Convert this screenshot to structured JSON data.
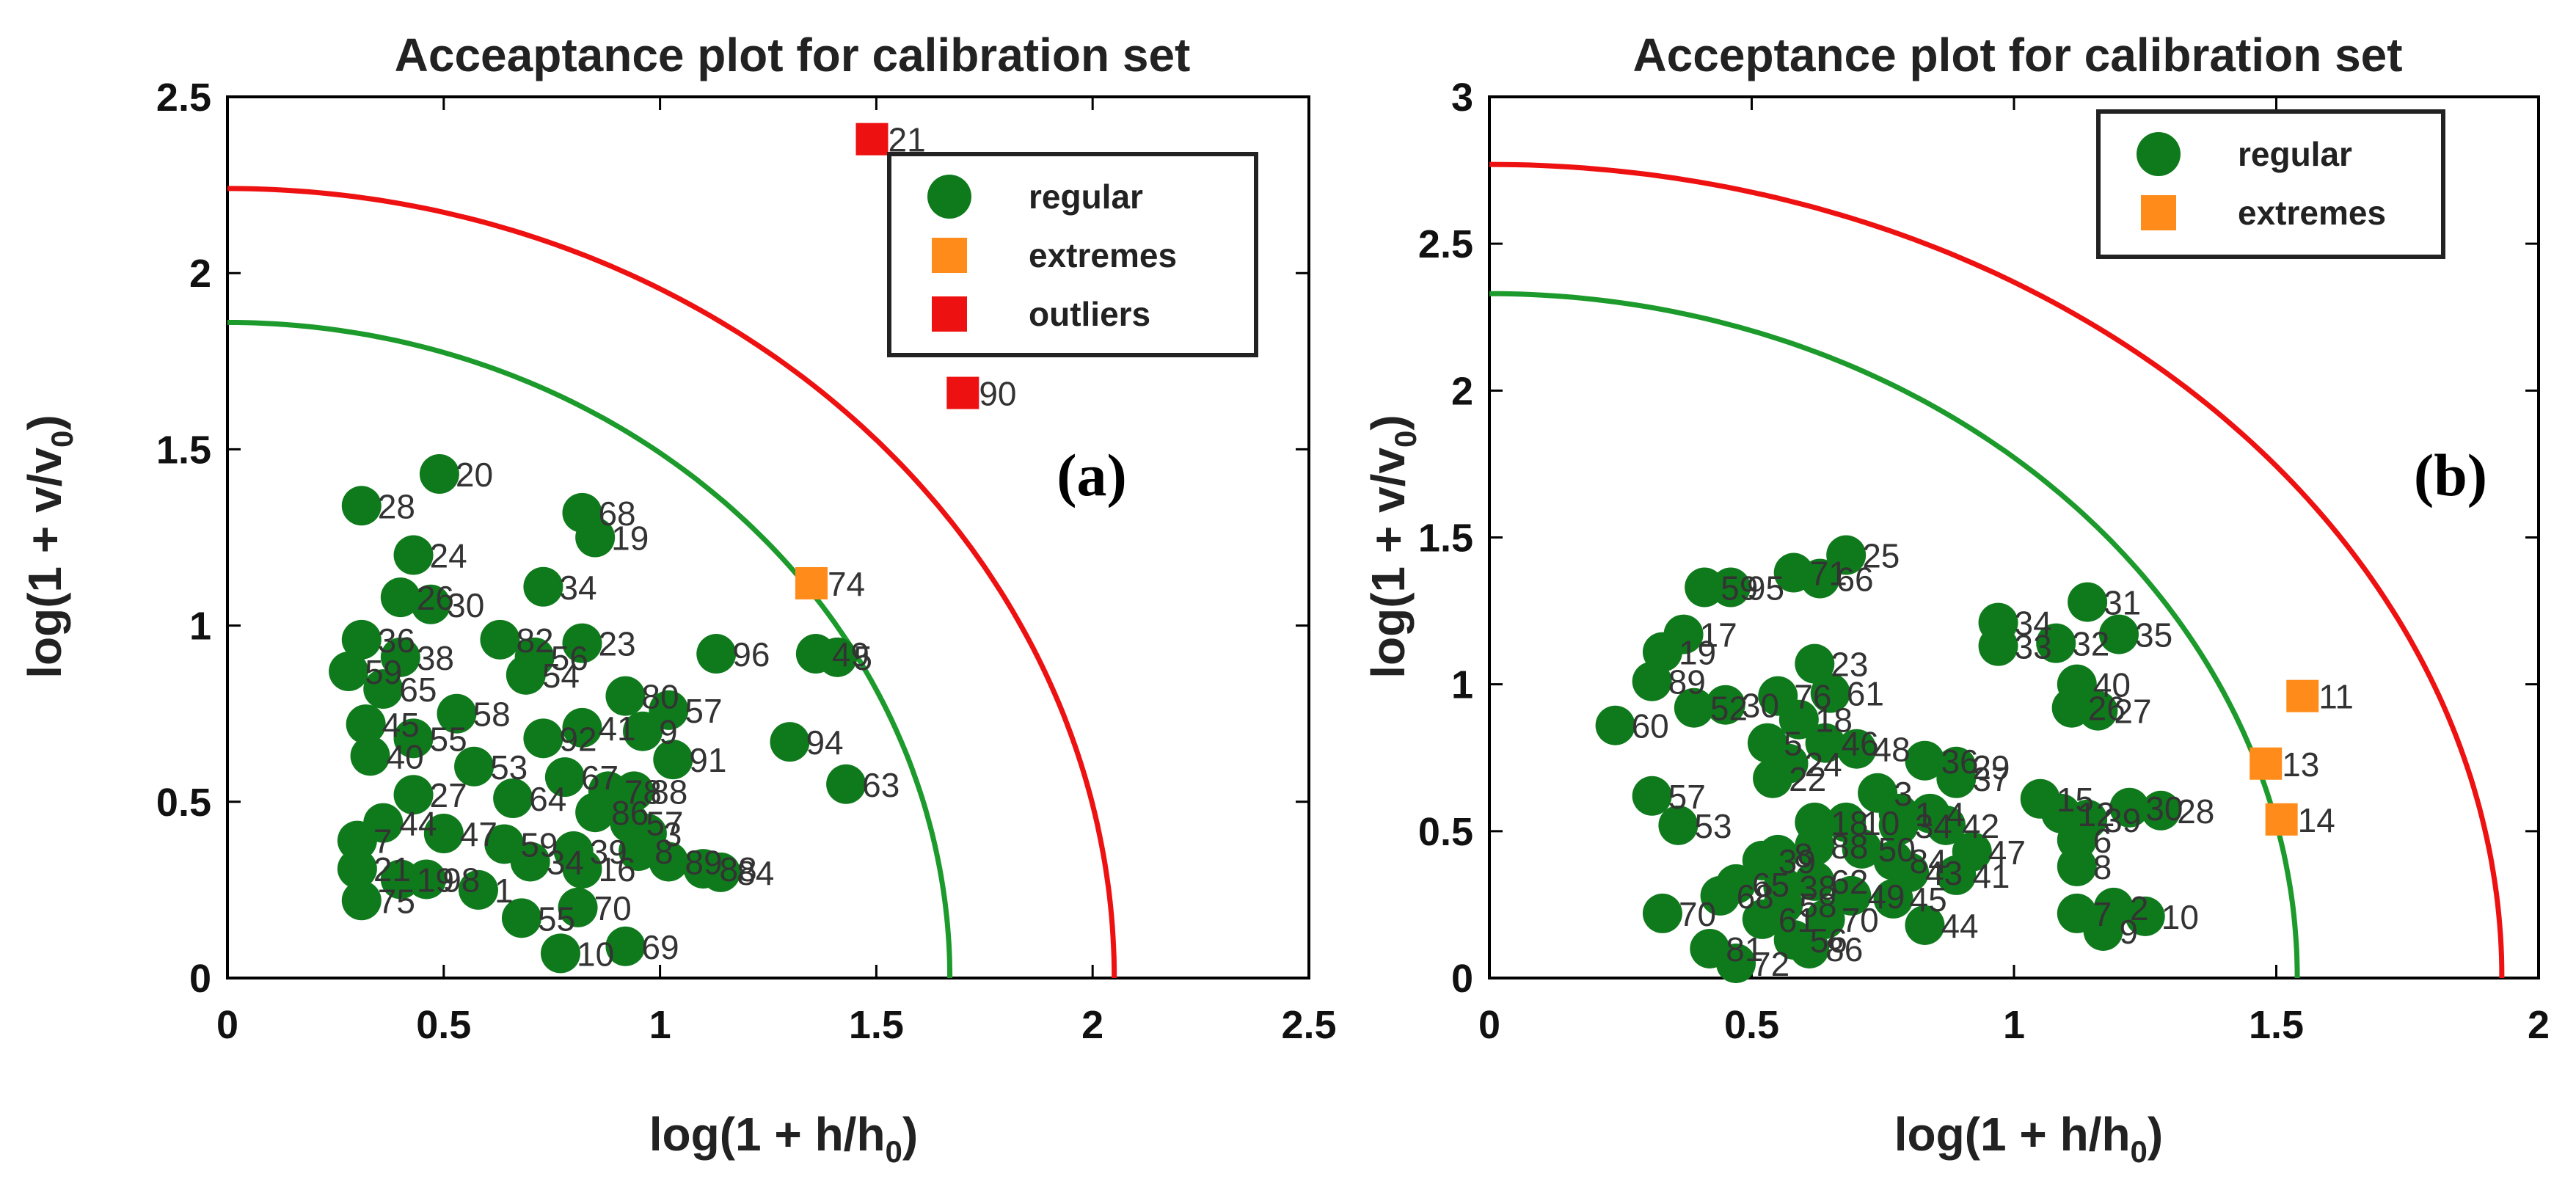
{
  "chart_data": [
    {
      "type": "scatter",
      "panel": "(a)",
      "title": "Acceaptance plot for calibration set",
      "xlabel": "log(1 + h/h",
      "xlabel_sub": "0",
      "xlabel_end": ")",
      "ylabel": "log(1 + v/v",
      "ylabel_sub": "0",
      "ylabel_end": ")",
      "xlim": [
        0,
        2.5
      ],
      "ylim": [
        0,
        2.5
      ],
      "xticks": [
        0,
        0.5,
        1,
        1.5,
        2,
        2.5
      ],
      "xtick_labels": [
        "0",
        "0.5",
        "1",
        "1.5",
        "2",
        "2.5"
      ],
      "yticks": [
        0,
        0.5,
        1,
        1.5,
        2,
        2.5
      ],
      "ytick_labels": [
        "0",
        "0.5",
        "1",
        "1.5",
        "2",
        "2.5"
      ],
      "legend_position": "top-right",
      "legend": [
        {
          "label": "regular",
          "marker": "circle",
          "color": "#0f7a1c"
        },
        {
          "label": "extremes",
          "marker": "square",
          "color": "#ff8c1a"
        },
        {
          "label": "outliers",
          "marker": "square",
          "color": "#ee1111"
        }
      ],
      "curves": [
        {
          "name": "regular limit",
          "color": "#1d9a2c",
          "x_intercept": 1.67,
          "y_intercept": 1.86
        },
        {
          "name": "outlier limit",
          "color": "#ee1111",
          "x_intercept": 2.05,
          "y_intercept": 2.24
        }
      ],
      "series": [
        {
          "name": "regular",
          "points": [
            {
              "x": 0.49,
              "y": 1.43,
              "label": "20"
            },
            {
              "x": 0.31,
              "y": 1.34,
              "label": "28"
            },
            {
              "x": 0.82,
              "y": 1.32,
              "label": "68"
            },
            {
              "x": 0.85,
              "y": 1.25,
              "label": "19"
            },
            {
              "x": 0.43,
              "y": 1.2,
              "label": "24"
            },
            {
              "x": 0.73,
              "y": 1.11,
              "label": "34"
            },
            {
              "x": 0.4,
              "y": 1.08,
              "label": "26"
            },
            {
              "x": 0.47,
              "y": 1.06,
              "label": "30"
            },
            {
              "x": 0.31,
              "y": 0.96,
              "label": "36"
            },
            {
              "x": 0.4,
              "y": 0.91,
              "label": "38"
            },
            {
              "x": 0.63,
              "y": 0.96,
              "label": "82"
            },
            {
              "x": 0.82,
              "y": 0.95,
              "label": "23"
            },
            {
              "x": 0.71,
              "y": 0.91,
              "label": "56"
            },
            {
              "x": 1.13,
              "y": 0.92,
              "label": "96"
            },
            {
              "x": 1.36,
              "y": 0.92,
              "label": "49"
            },
            {
              "x": 1.41,
              "y": 0.91,
              "label": "5"
            },
            {
              "x": 0.28,
              "y": 0.87,
              "label": "59"
            },
            {
              "x": 0.36,
              "y": 0.82,
              "label": "65"
            },
            {
              "x": 0.69,
              "y": 0.86,
              "label": "54"
            },
            {
              "x": 0.92,
              "y": 0.8,
              "label": "80"
            },
            {
              "x": 1.02,
              "y": 0.76,
              "label": "57"
            },
            {
              "x": 0.53,
              "y": 0.75,
              "label": "58"
            },
            {
              "x": 0.32,
              "y": 0.72,
              "label": "45"
            },
            {
              "x": 0.82,
              "y": 0.71,
              "label": "41"
            },
            {
              "x": 0.96,
              "y": 0.7,
              "label": "9"
            },
            {
              "x": 0.73,
              "y": 0.68,
              "label": "92"
            },
            {
              "x": 0.43,
              "y": 0.68,
              "label": "55"
            },
            {
              "x": 1.3,
              "y": 0.67,
              "label": "94"
            },
            {
              "x": 0.33,
              "y": 0.63,
              "label": "40"
            },
            {
              "x": 1.03,
              "y": 0.62,
              "label": "91"
            },
            {
              "x": 0.57,
              "y": 0.6,
              "label": "53"
            },
            {
              "x": 0.78,
              "y": 0.57,
              "label": "67"
            },
            {
              "x": 1.43,
              "y": 0.55,
              "label": "63"
            },
            {
              "x": 0.88,
              "y": 0.53,
              "label": "78"
            },
            {
              "x": 0.94,
              "y": 0.53,
              "label": "88"
            },
            {
              "x": 0.43,
              "y": 0.52,
              "label": "27"
            },
            {
              "x": 0.66,
              "y": 0.51,
              "label": "64"
            },
            {
              "x": 0.85,
              "y": 0.47,
              "label": "86"
            },
            {
              "x": 0.36,
              "y": 0.44,
              "label": "44"
            },
            {
              "x": 0.93,
              "y": 0.44,
              "label": "57"
            },
            {
              "x": 0.5,
              "y": 0.41,
              "label": "47"
            },
            {
              "x": 0.97,
              "y": 0.41,
              "label": "3"
            },
            {
              "x": 0.3,
              "y": 0.39,
              "label": "7"
            },
            {
              "x": 0.64,
              "y": 0.38,
              "label": "59"
            },
            {
              "x": 0.8,
              "y": 0.36,
              "label": "39"
            },
            {
              "x": 0.95,
              "y": 0.36,
              "label": "8"
            },
            {
              "x": 1.02,
              "y": 0.33,
              "label": "89"
            },
            {
              "x": 0.7,
              "y": 0.33,
              "label": "34"
            },
            {
              "x": 0.82,
              "y": 0.31,
              "label": "16"
            },
            {
              "x": 1.1,
              "y": 0.31,
              "label": "88"
            },
            {
              "x": 1.14,
              "y": 0.3,
              "label": "84"
            },
            {
              "x": 0.3,
              "y": 0.31,
              "label": "21"
            },
            {
              "x": 0.4,
              "y": 0.28,
              "label": "19"
            },
            {
              "x": 0.46,
              "y": 0.28,
              "label": "98"
            },
            {
              "x": 0.58,
              "y": 0.25,
              "label": "1"
            },
            {
              "x": 0.31,
              "y": 0.22,
              "label": "75"
            },
            {
              "x": 0.81,
              "y": 0.2,
              "label": "70"
            },
            {
              "x": 0.68,
              "y": 0.17,
              "label": "55"
            },
            {
              "x": 0.92,
              "y": 0.09,
              "label": "69"
            },
            {
              "x": 0.77,
              "y": 0.07,
              "label": "10"
            }
          ]
        },
        {
          "name": "extremes",
          "points": [
            {
              "x": 1.35,
              "y": 1.12,
              "label": "74"
            }
          ]
        },
        {
          "name": "outliers",
          "points": [
            {
              "x": 1.49,
              "y": 2.38,
              "label": "21"
            },
            {
              "x": 1.7,
              "y": 1.66,
              "label": "90"
            }
          ]
        }
      ]
    },
    {
      "type": "scatter",
      "panel": "(b)",
      "title": "Acceptance plot for calibration set",
      "xlabel": "log(1 + h/h",
      "xlabel_sub": "0",
      "xlabel_end": ")",
      "ylabel": "log(1 + v/v",
      "ylabel_sub": "0",
      "ylabel_end": ")",
      "xlim": [
        0,
        2
      ],
      "ylim": [
        0,
        3
      ],
      "xticks": [
        0,
        0.5,
        1,
        1.5,
        2
      ],
      "xtick_labels": [
        "0",
        "0.5",
        "1",
        "1.5",
        "2"
      ],
      "yticks": [
        0,
        0.5,
        1,
        1.5,
        2,
        2.5,
        3
      ],
      "ytick_labels": [
        "0",
        "0.5",
        "1",
        "1.5",
        "2",
        "2.5",
        "3"
      ],
      "legend_position": "top-right",
      "legend": [
        {
          "label": "regular",
          "marker": "circle",
          "color": "#0f7a1c"
        },
        {
          "label": "extremes",
          "marker": "square",
          "color": "#ff8c1a"
        }
      ],
      "curves": [
        {
          "name": "regular limit",
          "color": "#1d9a2c",
          "x_intercept": 1.54,
          "y_intercept": 2.33
        },
        {
          "name": "outlier limit",
          "color": "#ee1111",
          "x_intercept": 1.93,
          "y_intercept": 2.77
        }
      ],
      "series": [
        {
          "name": "regular",
          "points": [
            {
              "x": 0.68,
              "y": 1.44,
              "label": "25"
            },
            {
              "x": 0.58,
              "y": 1.38,
              "label": "71"
            },
            {
              "x": 0.63,
              "y": 1.36,
              "label": "66"
            },
            {
              "x": 0.41,
              "y": 1.33,
              "label": "59"
            },
            {
              "x": 0.46,
              "y": 1.33,
              "label": "95"
            },
            {
              "x": 1.14,
              "y": 1.28,
              "label": "31"
            },
            {
              "x": 0.37,
              "y": 1.17,
              "label": "17"
            },
            {
              "x": 1.2,
              "y": 1.17,
              "label": "35"
            },
            {
              "x": 0.97,
              "y": 1.21,
              "label": "34"
            },
            {
              "x": 1.08,
              "y": 1.14,
              "label": "32"
            },
            {
              "x": 0.97,
              "y": 1.13,
              "label": "33"
            },
            {
              "x": 0.33,
              "y": 1.11,
              "label": "19"
            },
            {
              "x": 0.62,
              "y": 1.07,
              "label": "23"
            },
            {
              "x": 0.31,
              "y": 1.01,
              "label": "89"
            },
            {
              "x": 1.12,
              "y": 1.0,
              "label": "40"
            },
            {
              "x": 0.55,
              "y": 0.96,
              "label": "76"
            },
            {
              "x": 0.65,
              "y": 0.97,
              "label": "61"
            },
            {
              "x": 0.39,
              "y": 0.92,
              "label": "52"
            },
            {
              "x": 0.45,
              "y": 0.93,
              "label": "30"
            },
            {
              "x": 1.11,
              "y": 0.92,
              "label": "26"
            },
            {
              "x": 1.16,
              "y": 0.91,
              "label": "27"
            },
            {
              "x": 0.59,
              "y": 0.88,
              "label": "18"
            },
            {
              "x": 0.24,
              "y": 0.86,
              "label": "60"
            },
            {
              "x": 0.53,
              "y": 0.8,
              "label": "5"
            },
            {
              "x": 0.64,
              "y": 0.8,
              "label": "46"
            },
            {
              "x": 0.7,
              "y": 0.78,
              "label": "48"
            },
            {
              "x": 0.57,
              "y": 0.73,
              "label": "24"
            },
            {
              "x": 0.83,
              "y": 0.74,
              "label": "36"
            },
            {
              "x": 0.89,
              "y": 0.72,
              "label": "29"
            },
            {
              "x": 0.89,
              "y": 0.68,
              "label": "37"
            },
            {
              "x": 0.54,
              "y": 0.68,
              "label": "22"
            },
            {
              "x": 0.74,
              "y": 0.63,
              "label": "3"
            },
            {
              "x": 0.31,
              "y": 0.62,
              "label": "57"
            },
            {
              "x": 1.05,
              "y": 0.61,
              "label": "15"
            },
            {
              "x": 1.22,
              "y": 0.58,
              "label": "30"
            },
            {
              "x": 1.28,
              "y": 0.57,
              "label": "28"
            },
            {
              "x": 0.78,
              "y": 0.56,
              "label": "1"
            },
            {
              "x": 0.84,
              "y": 0.56,
              "label": "4"
            },
            {
              "x": 1.09,
              "y": 0.56,
              "label": "12"
            },
            {
              "x": 1.14,
              "y": 0.54,
              "label": "39"
            },
            {
              "x": 0.36,
              "y": 0.52,
              "label": "53"
            },
            {
              "x": 0.62,
              "y": 0.53,
              "label": "18"
            },
            {
              "x": 0.68,
              "y": 0.53,
              "label": "10"
            },
            {
              "x": 0.78,
              "y": 0.52,
              "label": "34"
            },
            {
              "x": 0.87,
              "y": 0.52,
              "label": "42"
            },
            {
              "x": 0.62,
              "y": 0.45,
              "label": "88"
            },
            {
              "x": 1.12,
              "y": 0.47,
              "label": "6"
            },
            {
              "x": 0.92,
              "y": 0.43,
              "label": "47"
            },
            {
              "x": 0.71,
              "y": 0.44,
              "label": "50"
            },
            {
              "x": 0.55,
              "y": 0.42,
              "label": "8"
            },
            {
              "x": 0.52,
              "y": 0.4,
              "label": "39"
            },
            {
              "x": 0.77,
              "y": 0.4,
              "label": "84"
            },
            {
              "x": 0.8,
              "y": 0.36,
              "label": "43"
            },
            {
              "x": 1.12,
              "y": 0.38,
              "label": "8"
            },
            {
              "x": 0.89,
              "y": 0.35,
              "label": "41"
            },
            {
              "x": 0.47,
              "y": 0.32,
              "label": "65"
            },
            {
              "x": 0.56,
              "y": 0.31,
              "label": "38"
            },
            {
              "x": 0.62,
              "y": 0.33,
              "label": "62"
            },
            {
              "x": 0.69,
              "y": 0.28,
              "label": "49"
            },
            {
              "x": 0.77,
              "y": 0.27,
              "label": "45"
            },
            {
              "x": 0.44,
              "y": 0.28,
              "label": "68"
            },
            {
              "x": 0.56,
              "y": 0.25,
              "label": "58"
            },
            {
              "x": 1.19,
              "y": 0.24,
              "label": "2"
            },
            {
              "x": 1.12,
              "y": 0.22,
              "label": "7"
            },
            {
              "x": 1.25,
              "y": 0.21,
              "label": "10"
            },
            {
              "x": 0.33,
              "y": 0.22,
              "label": "70"
            },
            {
              "x": 0.52,
              "y": 0.2,
              "label": "61"
            },
            {
              "x": 0.64,
              "y": 0.2,
              "label": "70"
            },
            {
              "x": 0.83,
              "y": 0.18,
              "label": "44"
            },
            {
              "x": 1.17,
              "y": 0.16,
              "label": "9"
            },
            {
              "x": 0.58,
              "y": 0.13,
              "label": "56"
            },
            {
              "x": 0.42,
              "y": 0.1,
              "label": "81"
            },
            {
              "x": 0.61,
              "y": 0.1,
              "label": "86"
            },
            {
              "x": 0.47,
              "y": 0.05,
              "label": "72"
            }
          ]
        },
        {
          "name": "extremes",
          "points": [
            {
              "x": 1.55,
              "y": 0.96,
              "label": "11"
            },
            {
              "x": 1.48,
              "y": 0.73,
              "label": "13"
            },
            {
              "x": 1.51,
              "y": 0.54,
              "label": "14"
            }
          ]
        }
      ]
    }
  ]
}
